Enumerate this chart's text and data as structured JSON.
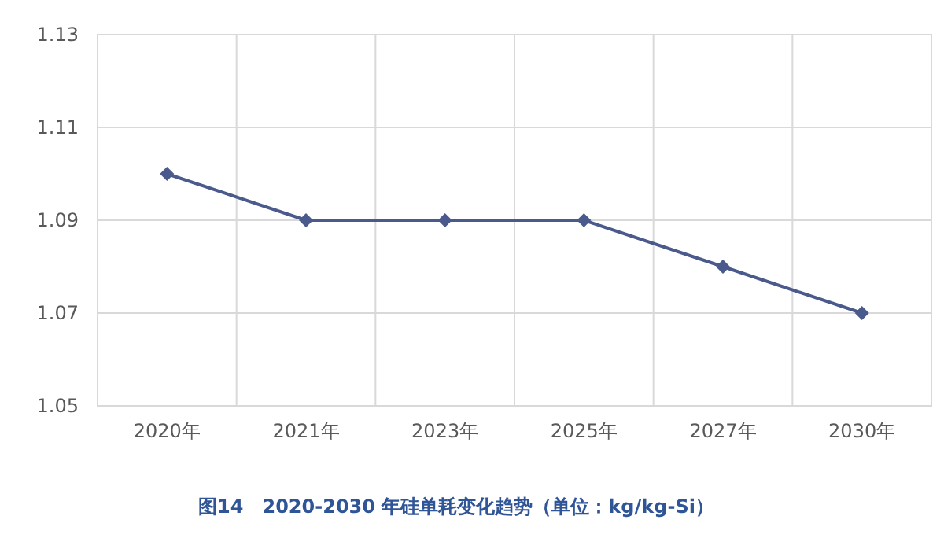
{
  "chart_data": {
    "type": "line",
    "categories": [
      "2020年",
      "2021年",
      "2023年",
      "2025年",
      "2027年",
      "2030年"
    ],
    "series": [
      {
        "color": "#4a5a8c",
        "values": [
          1.1,
          1.09,
          1.09,
          1.09,
          1.08,
          1.07
        ]
      }
    ],
    "ylim": [
      1.05,
      1.13
    ],
    "yticks": [
      1.05,
      1.07,
      1.09,
      1.11,
      1.13
    ],
    "grid": true,
    "marker": "diamond",
    "line_style": "solid",
    "annotations": [
      "图14　2020-2030 年硅单耗变化趋势（单位：kg/kg-Si）"
    ]
  }
}
